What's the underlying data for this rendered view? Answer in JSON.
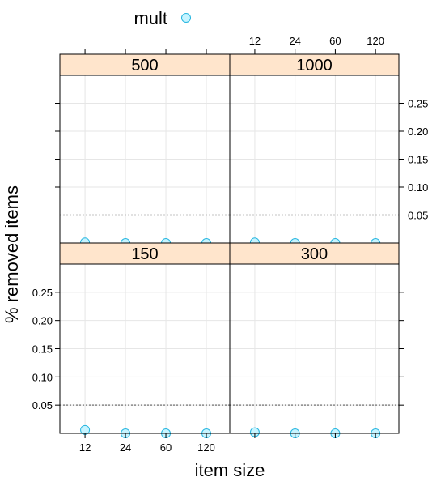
{
  "chart_data": {
    "type": "scatter",
    "layout": "trellis-2x2",
    "legend": {
      "position": "top",
      "entries": [
        {
          "label": "mult",
          "color": "#c6f4ff",
          "stroke": "#27b6e0",
          "marker": "circle"
        }
      ]
    },
    "xlabel": "item size",
    "ylabel": "% removed items",
    "categories": [
      "12",
      "24",
      "60",
      "120"
    ],
    "ylim": [
      0,
      0.3
    ],
    "yticks": [
      0.05,
      0.1,
      0.15,
      0.2,
      0.25
    ],
    "ytick_labels": [
      "0.05",
      "0.10",
      "0.15",
      "0.20",
      "0.25"
    ],
    "reference_line": 0.05,
    "grid": true,
    "panels": [
      {
        "label": "500",
        "values": [
          0.001,
          0.0,
          0.0,
          0.0
        ]
      },
      {
        "label": "1000",
        "values": [
          0.001,
          0.0,
          0.0,
          0.0
        ]
      },
      {
        "label": "150",
        "values": [
          0.006,
          0.0,
          0.0,
          0.0
        ]
      },
      {
        "label": "300",
        "values": [
          0.002,
          0.0,
          0.0,
          0.0
        ]
      }
    ]
  }
}
